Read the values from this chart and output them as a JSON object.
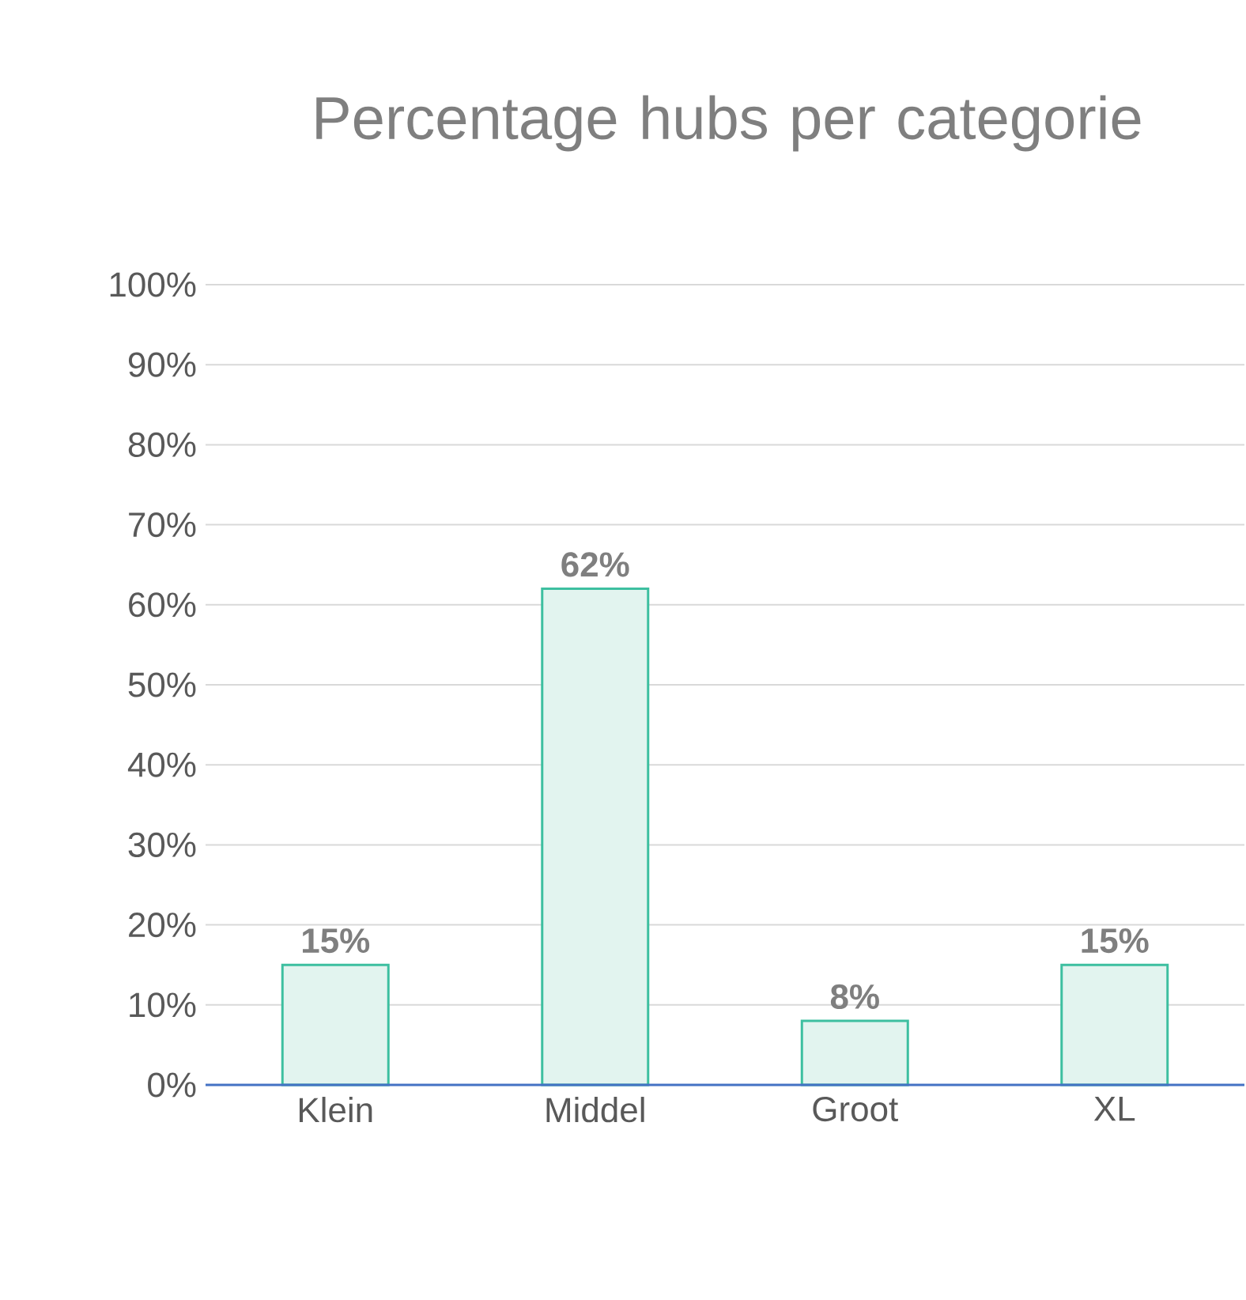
{
  "chart_data": {
    "type": "bar",
    "title": "Percentage hubs per categorie",
    "categories": [
      "Klein",
      "Middel",
      "Groot",
      "XL"
    ],
    "values": [
      15,
      62,
      8,
      15
    ],
    "value_labels": [
      "15%",
      "62%",
      "8%",
      "15%"
    ],
    "color": "#e2f4ef",
    "ylim": [
      0,
      100
    ],
    "yticks": [
      {
        "value": 0,
        "label": "0%"
      },
      {
        "value": 10,
        "label": "10%"
      },
      {
        "value": 20,
        "label": "20%"
      },
      {
        "value": 30,
        "label": "30%"
      },
      {
        "value": 40,
        "label": "40%"
      },
      {
        "value": 50,
        "label": "50%"
      },
      {
        "value": 60,
        "label": "60%"
      },
      {
        "value": 70,
        "label": "70%"
      },
      {
        "value": 80,
        "label": "80%"
      },
      {
        "value": 90,
        "label": "90%"
      },
      {
        "value": 100,
        "label": "100%"
      }
    ],
    "grid": "y"
  }
}
